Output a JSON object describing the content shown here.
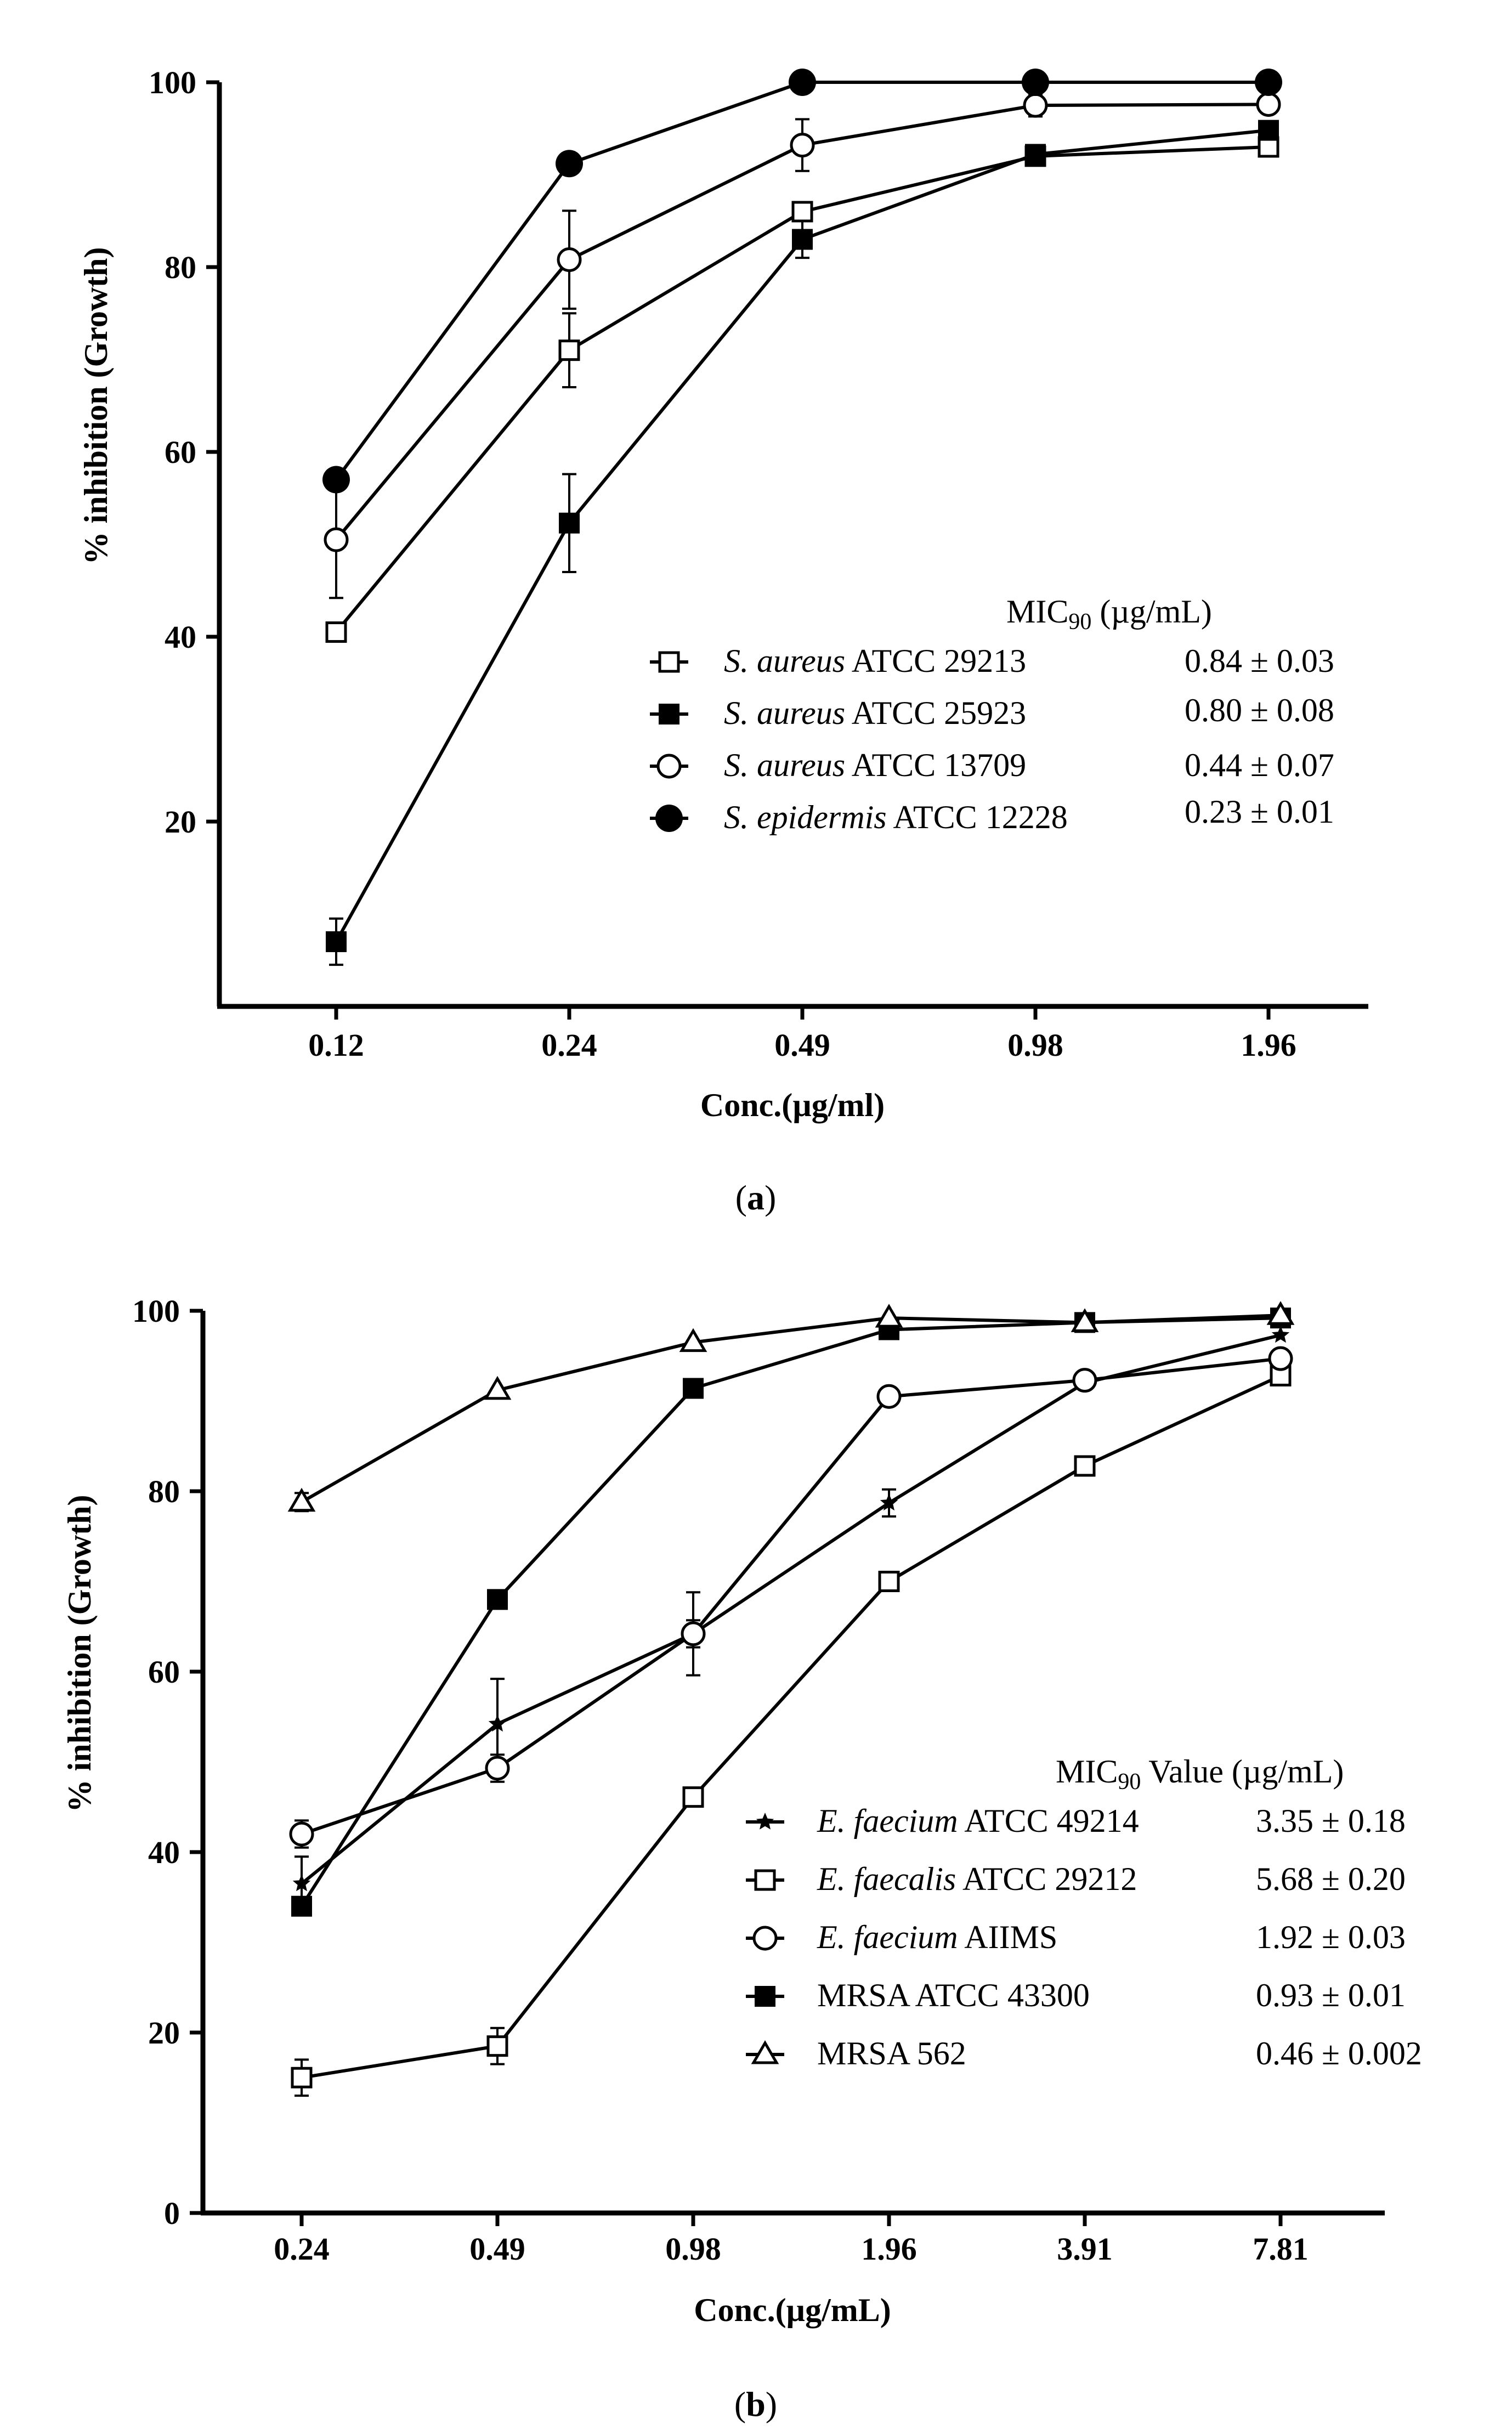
{
  "chart_data": [
    {
      "type": "line",
      "panel": "a",
      "caption_letter": "a",
      "xlabel": "Conc.(µg/ml)",
      "ylabel": "% inhibition (Growth)",
      "categories": [
        "0.12",
        "0.24",
        "0.49",
        "0.98",
        "1.96"
      ],
      "ylim": [
        0,
        100
      ],
      "yticks": [
        20,
        40,
        60,
        80,
        100
      ],
      "x_axis_slots": 5,
      "legend_header_main": "MIC",
      "legend_header_sub": "90",
      "legend_header_unit": " (µg/mL)",
      "series": [
        {
          "species": "S. aureus",
          "strain": " ATCC 29213",
          "mic": "0.84 ± 0.03",
          "marker": "square-open",
          "values": [
            40.5,
            71,
            86,
            92,
            93
          ],
          "errors": [
            0.8,
            4,
            0.8,
            0.5,
            1
          ]
        },
        {
          "species": "S. aureus",
          "strain": " ATCC 25923",
          "mic": "0.80 ± 0.08",
          "marker": "square-filled",
          "values": [
            7,
            52.3,
            83,
            92.2,
            94.8
          ],
          "errors": [
            2.5,
            5.3,
            2,
            0.5,
            0.5
          ]
        },
        {
          "species": "S. aureus",
          "strain": " ATCC 13709",
          "mic": "0.44 ± 0.07",
          "marker": "circle-open",
          "values": [
            50.5,
            80.8,
            93.2,
            97.5,
            97.6
          ],
          "errors": [
            6.3,
            5.3,
            2.8,
            1.2,
            0.5
          ]
        },
        {
          "species": "S. epidermis",
          "strain": " ATCC 12228",
          "mic": "0.23 ± 0.01",
          "marker": "circle-filled",
          "values": [
            57,
            91.2,
            100,
            100,
            100
          ],
          "errors": [
            0,
            0,
            0,
            0,
            0
          ]
        }
      ]
    },
    {
      "type": "line",
      "panel": "b",
      "caption_letter": "b",
      "xlabel": "Conc.(µg/mL)",
      "ylabel": "% inhibition (Growth)",
      "categories": [
        "0.24",
        "0.49",
        "0.98",
        "1.96",
        "3.91",
        "7.81"
      ],
      "ylim": [
        0,
        100
      ],
      "yticks": [
        0,
        20,
        40,
        60,
        80,
        100
      ],
      "x_axis_slots": 6,
      "legend_header_main": "MIC",
      "legend_header_sub": "90",
      "legend_header_unit": " Value (µg/mL)",
      "series": [
        {
          "species": "E. faecium",
          "strain": " ATCC 49214",
          "mic": "3.35 ± 0.18",
          "marker": "star",
          "values": [
            36.5,
            54.2,
            64.2,
            78.7,
            92,
            97.3
          ],
          "errors": [
            3,
            5,
            4.6,
            1.5,
            0.5,
            0.5
          ]
        },
        {
          "species": "E. faecalis",
          "strain": " ATCC 29212",
          "mic": "5.68 ± 0.20",
          "marker": "square-open",
          "values": [
            15,
            18.5,
            46.1,
            70,
            82.8,
            92.8
          ],
          "errors": [
            2,
            2,
            0.5,
            0.5,
            0.5,
            0.5
          ]
        },
        {
          "species": "E. faecium",
          "strain": " AIIMS",
          "mic": "1.92 ± 0.03",
          "marker": "circle-open",
          "values": [
            42,
            49.3,
            64.2,
            90.5,
            92.3,
            94.7
          ],
          "errors": [
            1.5,
            1.5,
            1.5,
            0.5,
            0.5,
            0.5
          ]
        },
        {
          "species": "",
          "strain": "MRSA ATCC 43300",
          "mic": "0.93 ± 0.01",
          "marker": "square-filled",
          "values": [
            34,
            68,
            91.4,
            97.9,
            98.7,
            99.2
          ],
          "errors": [
            0,
            0,
            0,
            0.5,
            0.5,
            0.5
          ]
        },
        {
          "species": "",
          "strain": "MRSA 562",
          "mic": "0.46 ± 0.002",
          "marker": "triangle-open",
          "values": [
            78.8,
            91.2,
            96.5,
            99.2,
            98.7,
            99.5
          ],
          "errors": [
            1,
            0.5,
            0.5,
            0.5,
            0.5,
            0.5
          ]
        }
      ]
    }
  ]
}
